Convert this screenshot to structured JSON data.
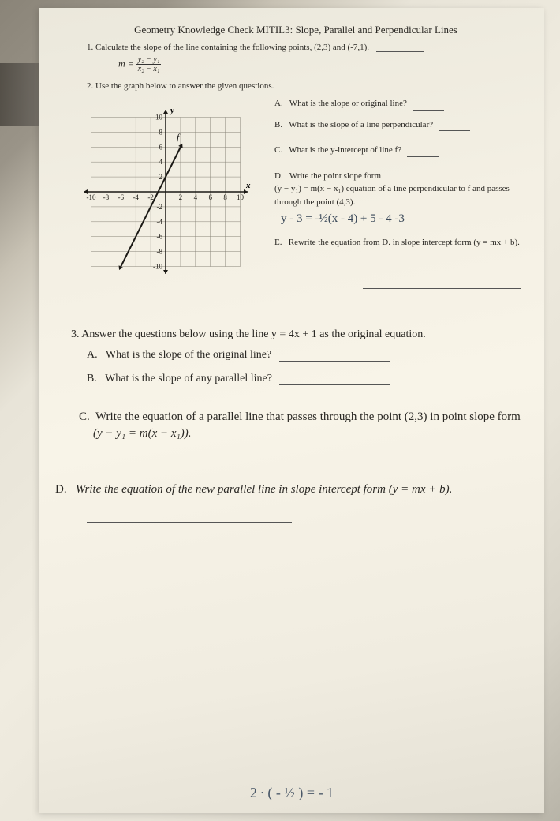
{
  "header": "Geometry Knowledge Check MITIL3: Slope, Parallel and Perpendicular Lines",
  "q1": {
    "num": "1.",
    "text": "Calculate the slope of the line containing the following points, (2,3) and (-7,1).",
    "formula_lhs": "m =",
    "formula_num": "y₂ − y₁",
    "formula_den": "x₂ − x₁"
  },
  "q2": {
    "num": "2.",
    "text": "Use the graph below to answer the given questions."
  },
  "graph": {
    "x_ticks": [
      -10,
      -8,
      -6,
      -4,
      -2,
      0,
      2,
      4,
      6,
      8,
      10
    ],
    "y_ticks": [
      -10,
      -8,
      -6,
      -4,
      -2,
      2,
      4,
      6,
      8,
      10
    ],
    "x_label": "x",
    "y_label": "y",
    "line_label": "f",
    "line_p1": [
      -6,
      -10
    ],
    "line_p2": [
      2,
      6
    ],
    "line_color": "#1a1814",
    "grid_color": "#888478",
    "axis_color": "#1a1814",
    "arrow_color": "#1a1814",
    "label_fontsize": 9
  },
  "q2r": {
    "A": {
      "label": "A.",
      "text": "What is the slope or original line?"
    },
    "B": {
      "label": "B.",
      "text": "What is the slope of a line perpendicular?"
    },
    "C": {
      "label": "C.",
      "text": "What is the y-intercept of line f?"
    },
    "D": {
      "label": "D.",
      "text1": "Write the point slope form",
      "text2": "(y − y₁) = m(x − x₁) equation of a line perpendicular to f and passes through the point (4,3).",
      "handwriting": "y - 3 = -½(x - 4) + 5 - 4   -3"
    },
    "E": {
      "label": "E.",
      "text": "Rewrite the equation from D. in slope intercept form (y = mx + b)."
    }
  },
  "q3": {
    "intro_num": "3.",
    "intro_text": "Answer the questions below using the line y = 4x + 1 as the original equation.",
    "A": {
      "label": "A.",
      "text": "What is the slope of the original line?"
    },
    "B": {
      "label": "B.",
      "text": "What is the slope of any parallel line?"
    },
    "C": {
      "label": "C.",
      "text": "Write the equation of a parallel line that passes through the point (2,3) in point slope form",
      "formula": "(y − y₁ = m(x − x₁))."
    },
    "D": {
      "label": "D.",
      "text": "Write the equation of the new parallel line in slope intercept form (y = mx + b)."
    }
  },
  "bottom_handwriting": "2 ∙ ( - ½ ) = - 1",
  "colors": {
    "text": "#2a2824",
    "handwriting": "#3a4858",
    "paper_bg": "#f4f0e4"
  }
}
